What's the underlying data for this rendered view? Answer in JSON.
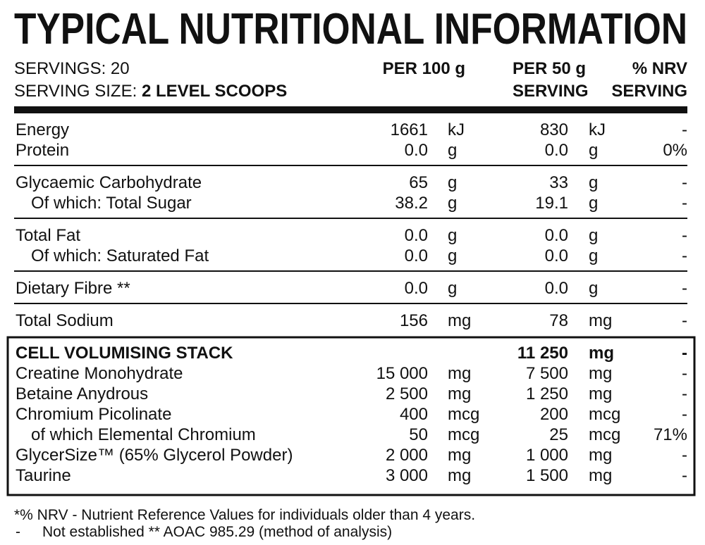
{
  "title": "TYPICAL NUTRITIONAL INFORMATION",
  "servings": "SERVINGS: 20",
  "serving_size": {
    "label": "SERVING SIZE:",
    "value": "2 LEVEL SCOOPS"
  },
  "columns": {
    "per_100g": "PER 100 g",
    "per_serving": [
      "PER 50 g",
      "SERVING"
    ],
    "nrv": [
      "% NRV",
      "SERVING"
    ]
  },
  "groups": [
    {
      "rows": [
        {
          "name": "Energy",
          "per_100g": "1661",
          "unit_100g": "kJ",
          "per_serving": "830",
          "unit_serving": "kJ",
          "nrv": "-"
        },
        {
          "name": "Protein",
          "per_100g": "0.0",
          "unit_100g": "g",
          "per_serving": "0.0",
          "unit_serving": "g",
          "nrv": "0%"
        }
      ]
    },
    {
      "rows": [
        {
          "name": "Glycaemic Carbohydrate",
          "per_100g": "65",
          "unit_100g": "g",
          "per_serving": "33",
          "unit_serving": "g",
          "nrv": "-"
        },
        {
          "name": "Of which: Total Sugar",
          "indent": true,
          "per_100g": "38.2",
          "unit_100g": "g",
          "per_serving": "19.1",
          "unit_serving": "g",
          "nrv": "-"
        }
      ]
    },
    {
      "rows": [
        {
          "name": "Total Fat",
          "per_100g": "0.0",
          "unit_100g": "g",
          "per_serving": "0.0",
          "unit_serving": "g",
          "nrv": "-"
        },
        {
          "name": "Of which: Saturated Fat",
          "indent": true,
          "per_100g": "0.0",
          "unit_100g": "g",
          "per_serving": "0.0",
          "unit_serving": "g",
          "nrv": "-"
        }
      ]
    },
    {
      "rows": [
        {
          "name": "Dietary Fibre **",
          "per_100g": "0.0",
          "unit_100g": "g",
          "per_serving": "0.0",
          "unit_serving": "g",
          "nrv": "-"
        }
      ]
    },
    {
      "rows": [
        {
          "name": "Total Sodium",
          "per_100g": "156",
          "unit_100g": "mg",
          "per_serving": "78",
          "unit_serving": "mg",
          "nrv": "-"
        }
      ]
    }
  ],
  "stack": {
    "header": {
      "name": "CELL VOLUMISING STACK",
      "per_serving": "11 250",
      "unit_serving": "mg",
      "nrv": "-"
    },
    "rows": [
      {
        "name": "Creatine Monohydrate",
        "per_100g": "15 000",
        "unit_100g": "mg",
        "per_serving": "7 500",
        "unit_serving": "mg",
        "nrv": "-"
      },
      {
        "name": "Betaine Anydrous",
        "per_100g": "2 500",
        "unit_100g": "mg",
        "per_serving": "1 250",
        "unit_serving": "mg",
        "nrv": "-"
      },
      {
        "name": "Chromium Picolinate",
        "per_100g": "400",
        "unit_100g": "mcg",
        "per_serving": "200",
        "unit_serving": "mcg",
        "nrv": "-"
      },
      {
        "name": "of which Elemental Chromium",
        "indent": true,
        "per_100g": "50",
        "unit_100g": "mcg",
        "per_serving": "25",
        "unit_serving": "mcg",
        "nrv": "71%"
      },
      {
        "name": "GlycerSize™ (65% Glycerol Powder)",
        "per_100g": "2 000",
        "unit_100g": "mg",
        "per_serving": "1 000",
        "unit_serving": "mg",
        "nrv": "-"
      },
      {
        "name": "Taurine",
        "per_100g": "3 000",
        "unit_100g": "mg",
        "per_serving": "1 500",
        "unit_serving": "mg",
        "nrv": "-"
      }
    ]
  },
  "footnotes": [
    [
      "*% NRV - Nutrient Reference Values for individuals older than 4 years."
    ],
    [
      "-",
      "Not established ** AOAC 985.29 (method of analysis)"
    ]
  ]
}
